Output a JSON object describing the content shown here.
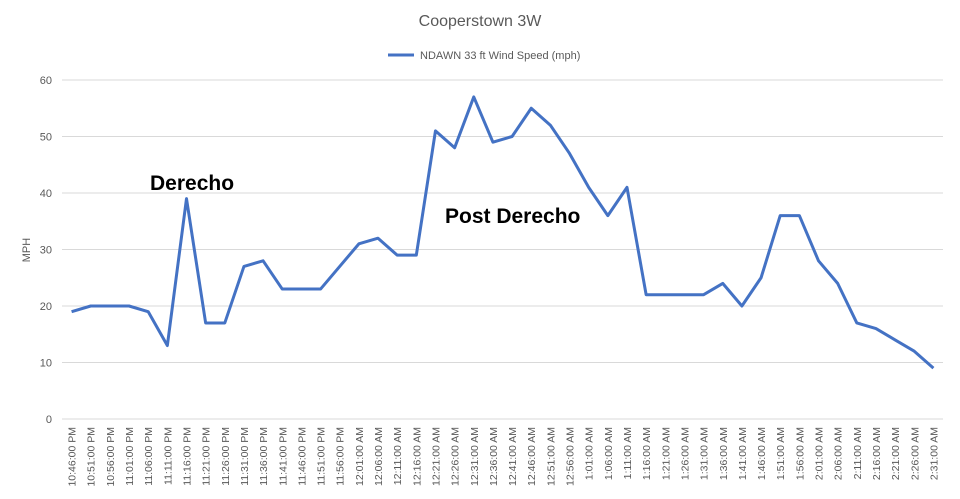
{
  "chart_data": {
    "type": "line",
    "title": "Cooperstown 3W",
    "ylabel": "MPH",
    "categories": [
      "10:46:00 PM",
      "10:51:00 PM",
      "10:56:00 PM",
      "11:01:00 PM",
      "11:06:00 PM",
      "11:11:00 PM",
      "11:16:00 PM",
      "11:21:00 PM",
      "11:26:00 PM",
      "11:31:00 PM",
      "11:36:00 PM",
      "11:41:00 PM",
      "11:46:00 PM",
      "11:51:00 PM",
      "11:56:00 PM",
      "12:01:00 AM",
      "12:06:00 AM",
      "12:11:00 AM",
      "12:16:00 AM",
      "12:21:00 AM",
      "12:26:00 AM",
      "12:31:00 AM",
      "12:36:00 AM",
      "12:41:00 AM",
      "12:46:00 AM",
      "12:51:00 AM",
      "12:56:00 AM",
      "1:01:00 AM",
      "1:06:00 AM",
      "1:11:00 AM",
      "1:16:00 AM",
      "1:21:00 AM",
      "1:26:00 AM",
      "1:31:00 AM",
      "1:36:00 AM",
      "1:41:00 AM",
      "1:46:00 AM",
      "1:51:00 AM",
      "1:56:00 AM",
      "2:01:00 AM",
      "2:06:00 AM",
      "2:11:00 AM",
      "2:16:00 AM",
      "2:21:00 AM",
      "2:26:00 AM",
      "2:31:00 AM"
    ],
    "series": [
      {
        "name": "NDAWN 33 ft Wind Speed (mph)",
        "color": "#4472c4",
        "values": [
          19,
          20,
          20,
          20,
          19,
          13,
          39,
          17,
          17,
          27,
          28,
          23,
          23,
          23,
          27,
          31,
          32,
          29,
          29,
          51,
          48,
          57,
          49,
          50,
          55,
          52,
          47,
          41,
          36,
          41,
          22,
          22,
          22,
          22,
          24,
          20,
          25,
          36,
          36,
          28,
          24,
          17,
          16,
          14,
          12,
          9
        ]
      }
    ],
    "ylim": [
      0,
      60
    ],
    "yticks": [
      0,
      10,
      20,
      30,
      40,
      50,
      60
    ],
    "grid": true,
    "annotations": [
      "Derecho",
      "Post Derecho"
    ]
  }
}
